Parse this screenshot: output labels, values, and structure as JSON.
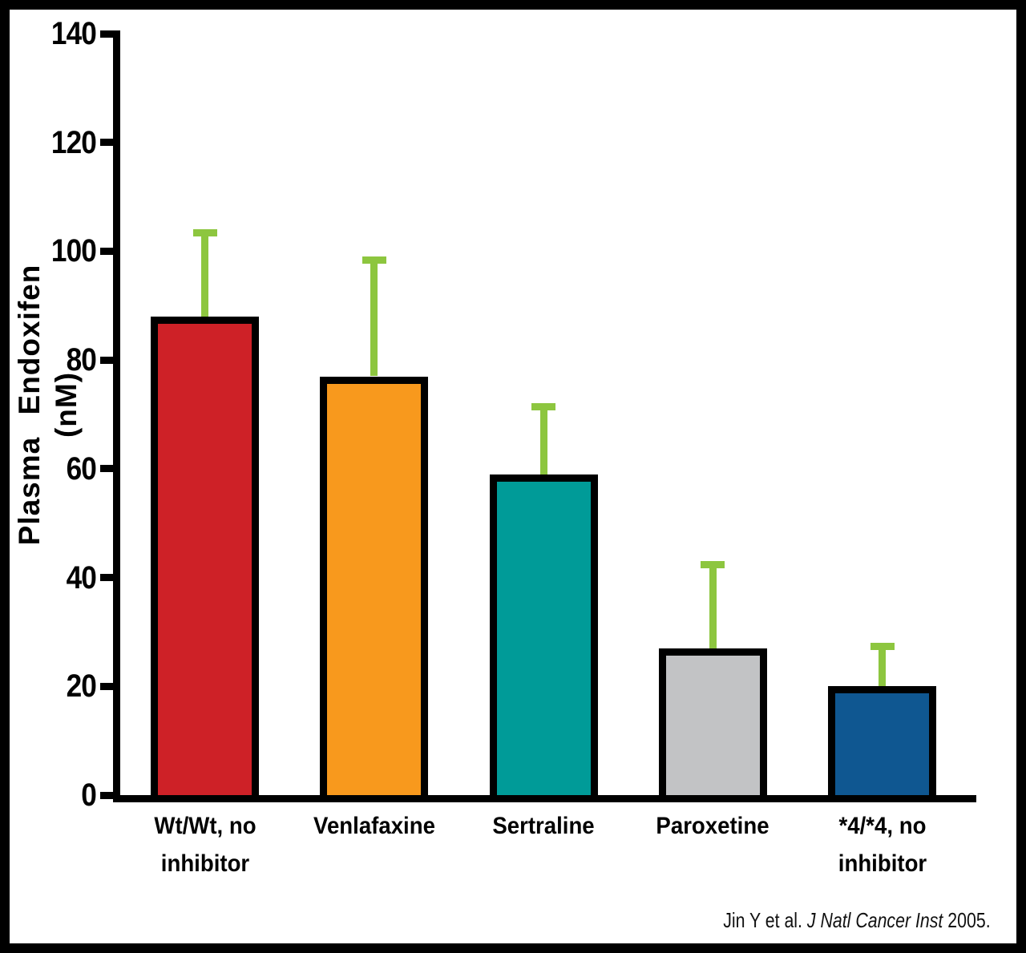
{
  "figure": {
    "background_color": "#ffffff",
    "frame_border_color": "#000000"
  },
  "y_axis": {
    "title_line1": "Plasma Endoxifen",
    "title_line2": "(nM)",
    "tick_labels": [
      "0",
      "20",
      "40",
      "60",
      "80",
      "100",
      "120",
      "140"
    ]
  },
  "citation": {
    "prefix": "Jin Y et al. ",
    "journal": "J Natl Cancer Inst",
    "suffix": " 2005."
  },
  "chart_data": {
    "type": "bar",
    "title": "",
    "xlabel": "",
    "ylabel": "Plasma Endoxifen (nM)",
    "ylim": [
      0,
      140
    ],
    "yticks": [
      0,
      20,
      40,
      60,
      80,
      100,
      120,
      140
    ],
    "grid": false,
    "legend": "none",
    "categories": [
      "Wt/Wt, no inhibitor",
      "Venlafaxine",
      "Sertraline",
      "Paroxetine",
      "*4/*4, no inhibitor"
    ],
    "label_lines": [
      [
        "Wt/Wt, no",
        "inhibitor"
      ],
      [
        "Venlafaxine"
      ],
      [
        "Sertraline"
      ],
      [
        "Paroxetine"
      ],
      [
        "*4/*4, no",
        "inhibitor"
      ]
    ],
    "values": [
      88,
      77,
      59,
      27,
      20
    ],
    "error_upper": [
      16,
      22,
      13,
      16,
      8
    ],
    "error_cap_values": [
      104,
      99,
      72,
      43,
      28
    ],
    "bar_colors": [
      "#CE2127",
      "#F8991D",
      "#009B98",
      "#C2C3C5",
      "#0F5791"
    ],
    "bar_border_color": "#000000",
    "error_bar_color": "#8DC63F"
  }
}
